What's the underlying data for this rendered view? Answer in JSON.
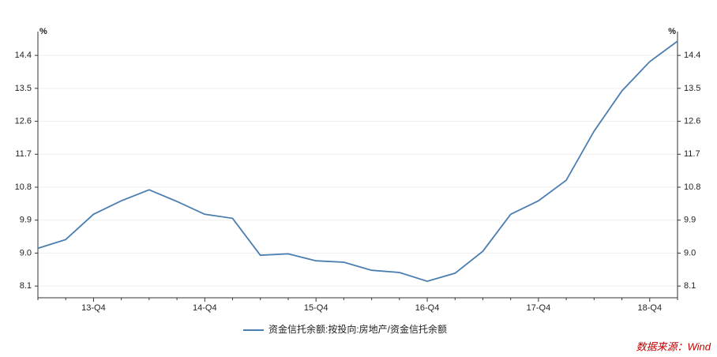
{
  "chart_data": {
    "type": "line",
    "y_unit": "%",
    "y2_unit": "%",
    "categories": [
      null,
      null,
      "13-Q4",
      null,
      null,
      null,
      "14-Q4",
      null,
      null,
      null,
      "15-Q4",
      null,
      null,
      null,
      "16-Q4",
      null,
      null,
      null,
      "17-Q4",
      null,
      null,
      null,
      "18-Q4",
      null
    ],
    "series": [
      {
        "name": "资金信托余额:按投向:房地产/资金信托余额",
        "color": "#4a7db0",
        "values": [
          9.13,
          9.37,
          10.06,
          10.43,
          10.73,
          10.41,
          10.06,
          9.95,
          8.94,
          8.98,
          8.79,
          8.75,
          8.53,
          8.47,
          8.23,
          8.45,
          9.05,
          10.06,
          10.43,
          10.99,
          12.33,
          13.43,
          14.23,
          14.79
        ]
      }
    ],
    "ylim": [
      7.78,
      15.05
    ],
    "yticks": [
      {
        "value": 8.1,
        "label": "8.1"
      },
      {
        "value": 9,
        "label": "9.0"
      },
      9.9,
      10.8,
      11.7,
      12.6,
      13.5,
      14.4
    ],
    "y2lim": [
      7.78,
      15.05
    ],
    "y2ticks": [
      {
        "value": 8.1,
        "label": "8.1"
      },
      {
        "value": 9,
        "label": "9.0"
      },
      9.9,
      10.8,
      11.7,
      12.6,
      13.5,
      14.4
    ],
    "grid": true,
    "source": "数据来源：Wind"
  }
}
